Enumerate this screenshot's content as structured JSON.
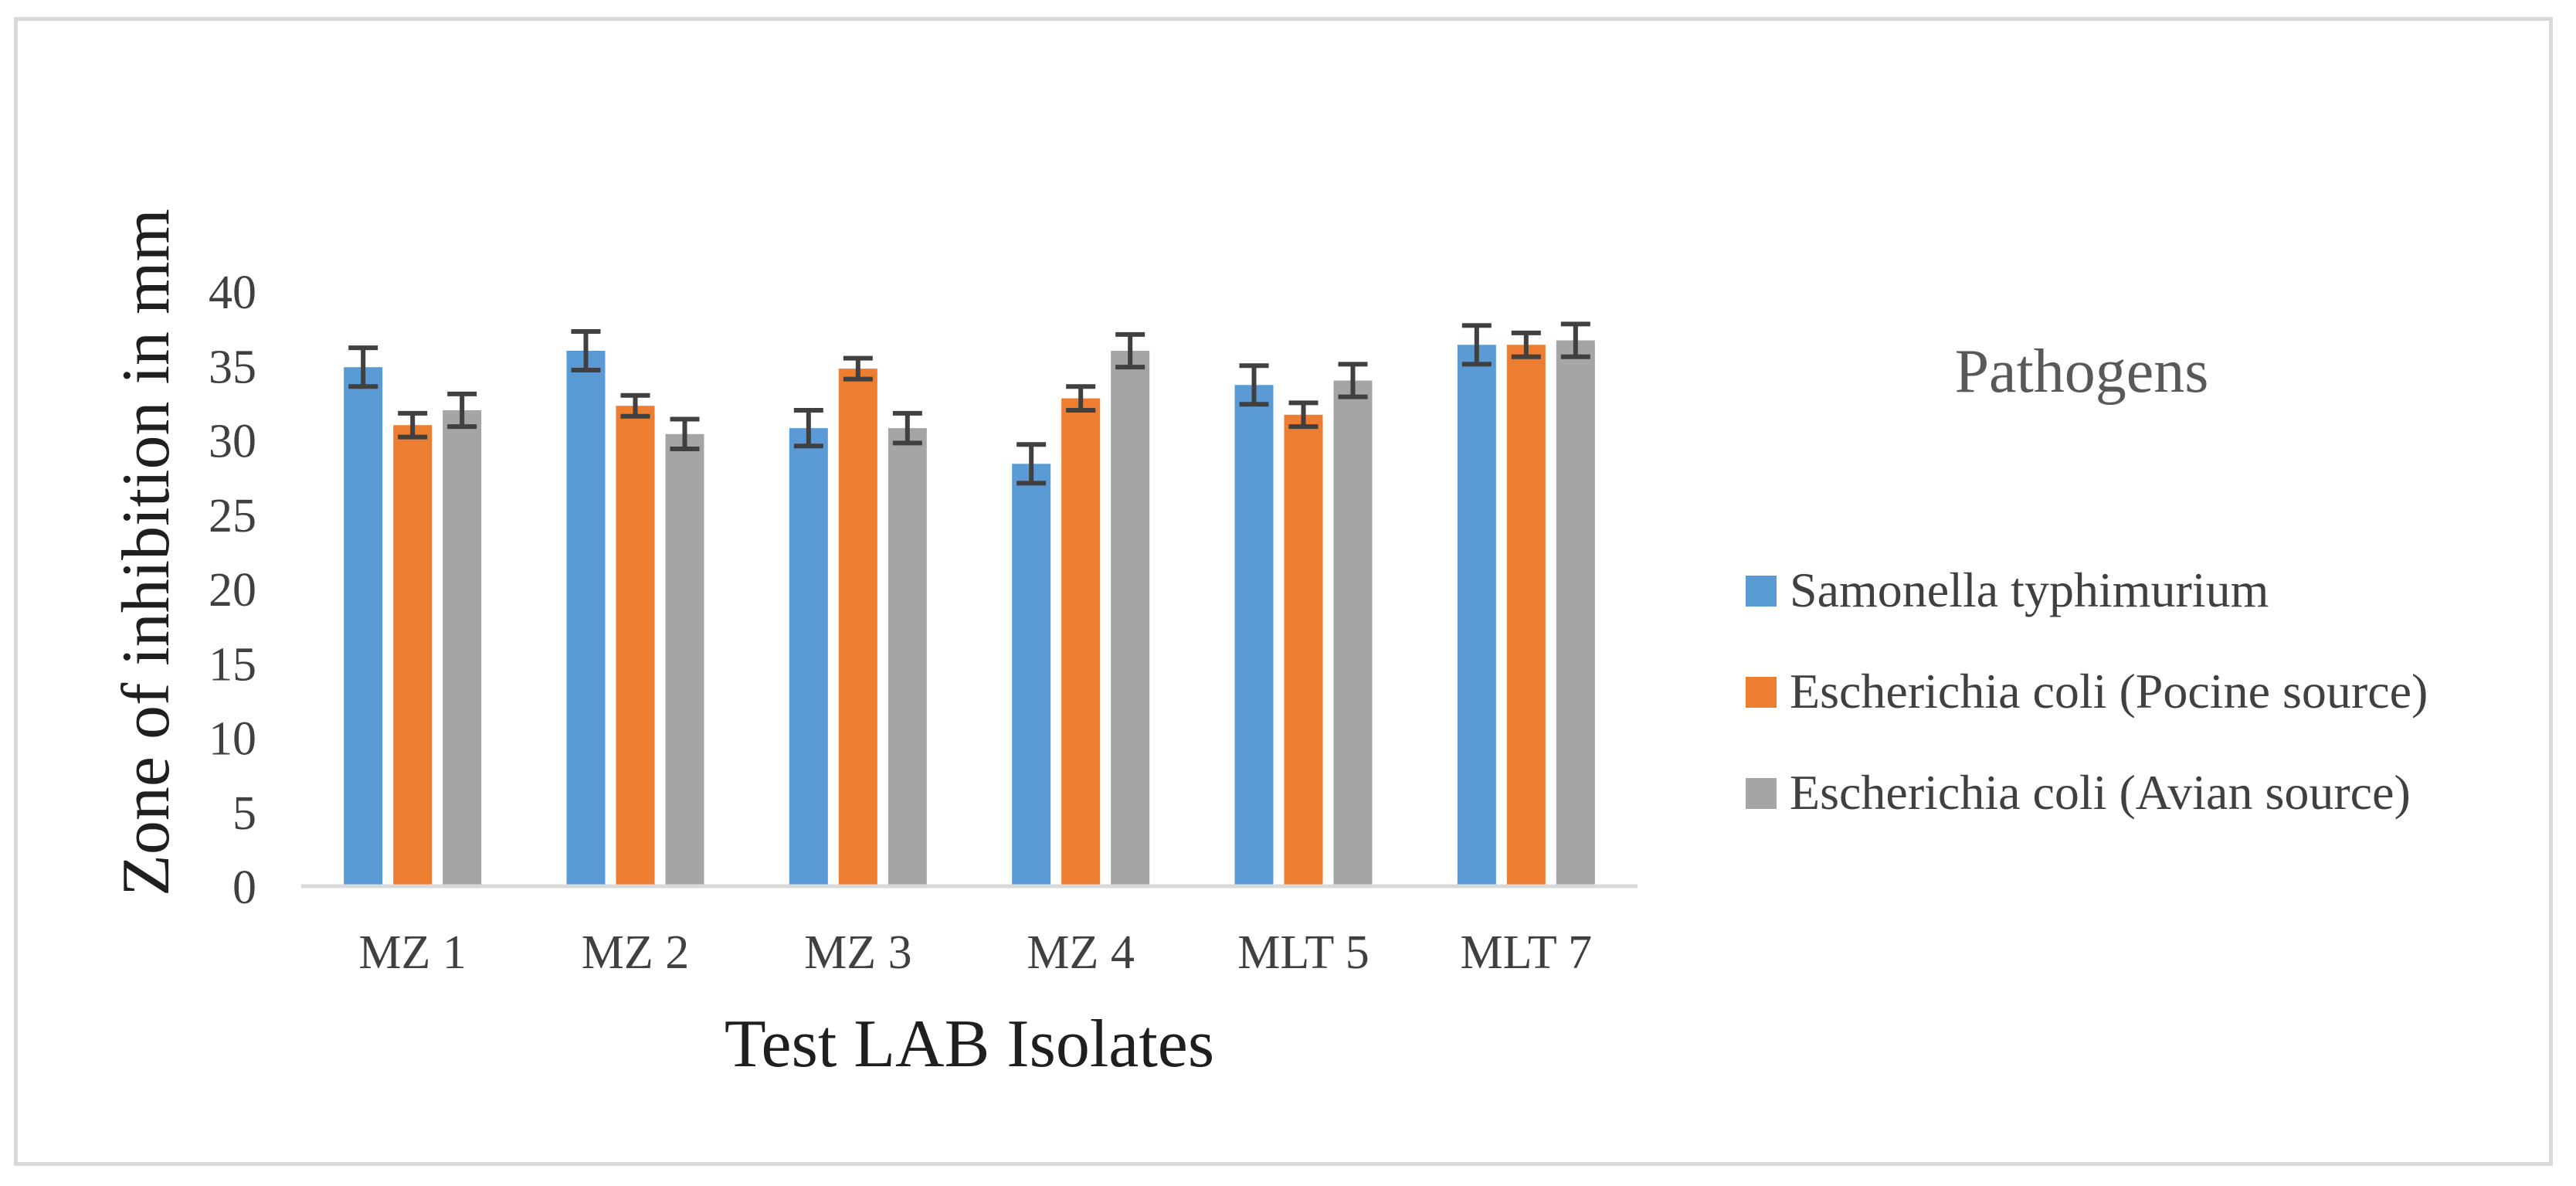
{
  "chart_data": {
    "type": "bar",
    "title": "",
    "xlabel": "Test LAB Isolates",
    "ylabel": "Zone of inhibition in mm",
    "ylim": [
      0,
      40
    ],
    "yticks": [
      0,
      5,
      10,
      15,
      20,
      25,
      30,
      35,
      40
    ],
    "grid": false,
    "legend_title": "Pathogens",
    "legend_position": "right",
    "categories": [
      "MZ 1",
      "MZ 2",
      "MZ 3",
      "MZ 4",
      "MLT 5",
      "MLT 7"
    ],
    "series": [
      {
        "name": "Samonella typhimurium",
        "color": "#5b9bd5",
        "values": [
          34.9,
          36.0,
          30.8,
          28.4,
          33.7,
          36.4
        ],
        "errors": [
          1.3,
          1.3,
          1.2,
          1.3,
          1.3,
          1.3
        ]
      },
      {
        "name": "Escherichia coli (Pocine source)",
        "color": "#ed7d31",
        "values": [
          31.0,
          32.3,
          34.8,
          32.8,
          31.7,
          36.4
        ],
        "errors": [
          0.8,
          0.7,
          0.7,
          0.8,
          0.8,
          0.8
        ]
      },
      {
        "name": "Escherichia coli (Avian source)",
        "color": "#a5a5a5",
        "values": [
          32.0,
          30.4,
          30.8,
          36.0,
          34.0,
          36.7
        ],
        "errors": [
          1.1,
          1.0,
          1.0,
          1.1,
          1.1,
          1.1
        ]
      }
    ],
    "error_bar_color": "#404040",
    "axis_color": "#d9d9d9"
  }
}
